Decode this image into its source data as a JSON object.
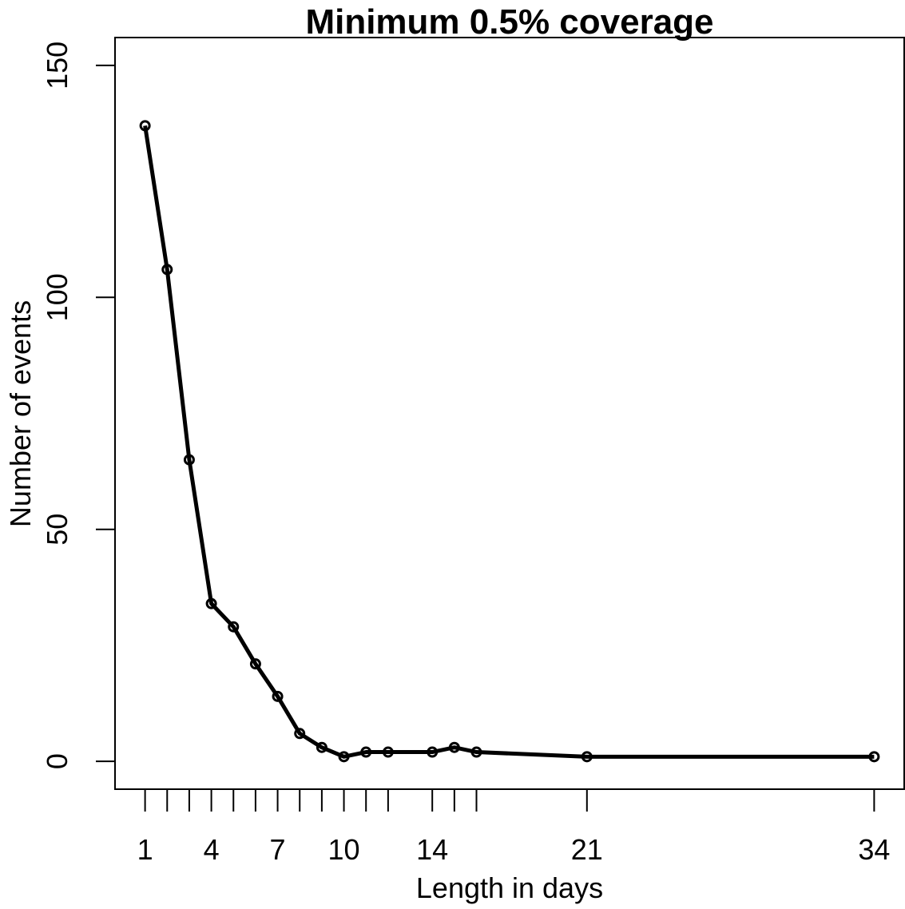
{
  "chart_data": {
    "type": "line",
    "title": "Minimum 0.5% coverage",
    "xlabel": "Length in days",
    "ylabel": "Number of events",
    "x": [
      1,
      2,
      3,
      4,
      5,
      6,
      7,
      8,
      9,
      10,
      11,
      12,
      14,
      15,
      16,
      21,
      34
    ],
    "y": [
      137,
      106,
      65,
      34,
      29,
      21,
      14,
      6,
      3,
      1,
      2,
      2,
      2,
      3,
      2,
      1,
      1
    ],
    "x_ticks": [
      1,
      2,
      3,
      4,
      5,
      6,
      7,
      8,
      9,
      10,
      11,
      12,
      14,
      15,
      16,
      21,
      34
    ],
    "x_tick_labels": [
      "1",
      "",
      "",
      "4",
      "",
      "",
      "7",
      "",
      "",
      "10",
      "",
      "",
      "14",
      "",
      "",
      "21",
      "34"
    ],
    "y_ticks": [
      0,
      50,
      100,
      150
    ],
    "y_tick_labels": [
      "0",
      "50",
      "100",
      "150"
    ],
    "xlim": [
      -0.36,
      35.36
    ],
    "ylim": [
      -6,
      156
    ],
    "line_color": "#000000",
    "marker": "open-circle",
    "grid": false
  }
}
